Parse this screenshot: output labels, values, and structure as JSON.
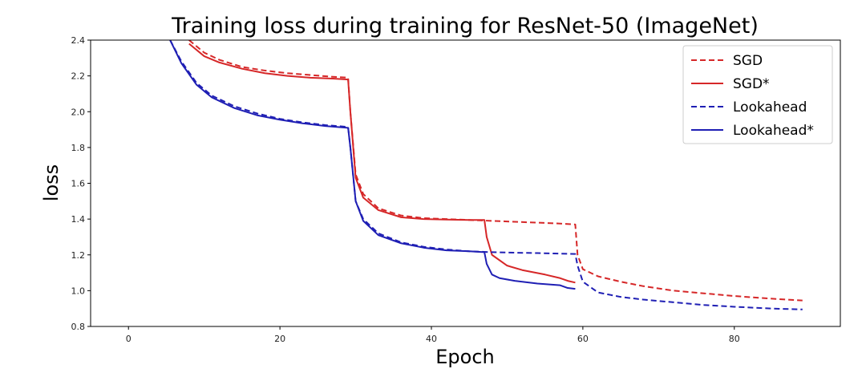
{
  "chart_data": {
    "type": "line",
    "title": "Training loss during training for ResNet-50 (ImageNet)",
    "xlabel": "Epoch",
    "ylabel": "loss",
    "xlim": [
      -5,
      94
    ],
    "ylim": [
      0.8,
      2.4
    ],
    "xticks": [
      0,
      20,
      40,
      60,
      80
    ],
    "yticks": [
      0.8,
      1.0,
      1.2,
      1.4,
      1.6,
      1.8,
      2.0,
      2.2,
      2.4
    ],
    "grid": false,
    "legend": "top-right",
    "series": [
      {
        "name": "SGD",
        "color": "#d62728",
        "style": "dashed",
        "x": [
          8,
          10,
          12,
          15,
          18,
          21,
          24,
          27,
          29,
          29.3,
          30,
          31,
          33,
          36,
          39,
          42,
          45,
          48,
          51,
          54,
          57,
          59,
          59.3,
          60,
          62,
          65,
          68,
          72,
          76,
          80,
          85,
          89
        ],
        "y": [
          2.4,
          2.33,
          2.29,
          2.25,
          2.23,
          2.215,
          2.205,
          2.195,
          2.19,
          2.0,
          1.65,
          1.54,
          1.46,
          1.42,
          1.405,
          1.4,
          1.395,
          1.39,
          1.385,
          1.38,
          1.375,
          1.37,
          1.2,
          1.12,
          1.08,
          1.05,
          1.025,
          1.0,
          0.985,
          0.97,
          0.955,
          0.945
        ]
      },
      {
        "name": "SGD*",
        "color": "#d62728",
        "style": "solid",
        "x": [
          8,
          10,
          12,
          15,
          18,
          21,
          24,
          27,
          29,
          29.3,
          30,
          31,
          33,
          36,
          39,
          42,
          45,
          47,
          47.3,
          48,
          50,
          52,
          55,
          57,
          58,
          59
        ],
        "y": [
          2.38,
          2.31,
          2.275,
          2.24,
          2.215,
          2.2,
          2.19,
          2.185,
          2.18,
          2.0,
          1.63,
          1.52,
          1.45,
          1.41,
          1.4,
          1.397,
          1.395,
          1.395,
          1.3,
          1.2,
          1.14,
          1.115,
          1.09,
          1.07,
          1.055,
          1.045
        ]
      },
      {
        "name": "Lookahead",
        "color": "#1f1fb4",
        "style": "dashed",
        "x": [
          5.5,
          7,
          9,
          11,
          14,
          17,
          20,
          23,
          26,
          29,
          29.3,
          30,
          31,
          33,
          36,
          39,
          42,
          45,
          48,
          51,
          54,
          57,
          59,
          59.3,
          60,
          62,
          65,
          68,
          72,
          76,
          80,
          85,
          89
        ],
        "y": [
          2.4,
          2.28,
          2.16,
          2.09,
          2.03,
          1.99,
          1.96,
          1.94,
          1.925,
          1.915,
          1.8,
          1.5,
          1.4,
          1.32,
          1.27,
          1.245,
          1.23,
          1.22,
          1.215,
          1.212,
          1.21,
          1.207,
          1.205,
          1.14,
          1.05,
          0.99,
          0.965,
          0.95,
          0.935,
          0.92,
          0.91,
          0.9,
          0.895
        ]
      },
      {
        "name": "Lookahead*",
        "color": "#1f1fb4",
        "style": "solid",
        "x": [
          5.5,
          7,
          9,
          11,
          14,
          17,
          20,
          23,
          26,
          29,
          29.3,
          30,
          31,
          33,
          36,
          39,
          42,
          45,
          47,
          47.3,
          48,
          49,
          51,
          54,
          57,
          58,
          59
        ],
        "y": [
          2.4,
          2.27,
          2.15,
          2.08,
          2.02,
          1.98,
          1.955,
          1.935,
          1.92,
          1.91,
          1.8,
          1.5,
          1.39,
          1.31,
          1.265,
          1.24,
          1.225,
          1.22,
          1.215,
          1.15,
          1.09,
          1.07,
          1.055,
          1.04,
          1.03,
          1.015,
          1.01
        ]
      }
    ]
  }
}
